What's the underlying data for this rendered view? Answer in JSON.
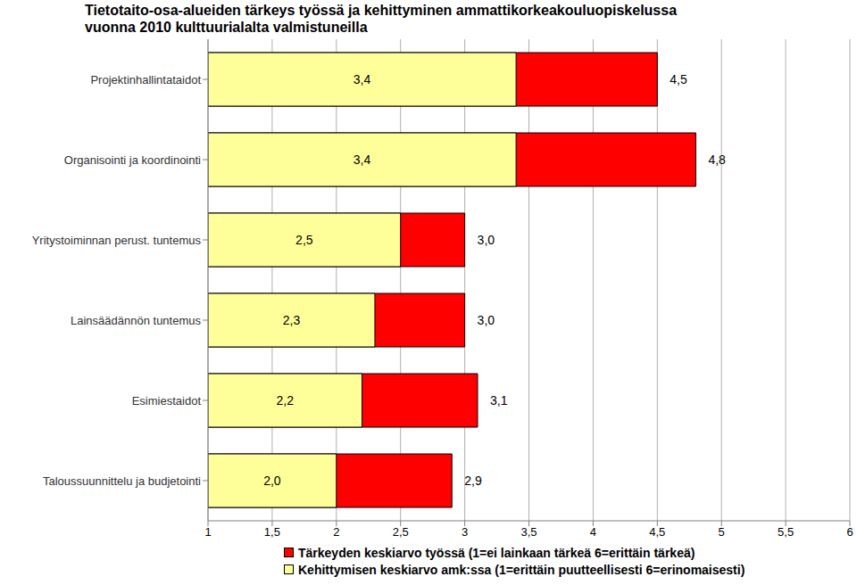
{
  "chart_data": {
    "type": "bar",
    "orientation": "horizontal",
    "title": "Tietotaito-osa-alueiden tärkeys työssä ja kehittyminen ammattikorkeakouluopiskelussa\nvuonna 2010 kulttuurialalta valmistuneilla",
    "categories": [
      "Projektinhallintataidot",
      "Organisointi ja koordinointi",
      "Yritystoiminnan perust. tuntemus",
      "Lainsäädännön tuntemus",
      "Esimiestaidot",
      "Taloussuunnittelu ja budjetointi"
    ],
    "series": [
      {
        "name": "Tärkeyden keskiarvo työssä (1=ei lainkaan tärkeä 6=erittäin tärkeä)",
        "color": "#ff0000",
        "values": [
          4.5,
          4.8,
          3.0,
          3.0,
          3.1,
          2.9
        ],
        "value_labels": [
          "4,5",
          "4,8",
          "3,0",
          "3,0",
          "3,1",
          "2,9"
        ]
      },
      {
        "name": "Kehittymisen keskiarvo amk:ssa (1=erittäin puutteellisesti 6=erinomaisesti)",
        "color": "#ffff99",
        "values": [
          3.4,
          3.4,
          2.5,
          2.3,
          2.2,
          2.0
        ],
        "value_labels": [
          "3,4",
          "3,4",
          "2,5",
          "2,3",
          "2,2",
          "2,0"
        ]
      }
    ],
    "xlim": [
      1,
      6
    ],
    "xticks": [
      1,
      {
        "value": 1.5,
        "label": "1,5"
      },
      2,
      {
        "value": 2.5,
        "label": "2,5"
      },
      3,
      {
        "value": 3.5,
        "label": "3,5"
      },
      4,
      {
        "value": 4.5,
        "label": "4,5"
      },
      5,
      {
        "value": 5.5,
        "label": "5,5"
      },
      6
    ],
    "grid": true,
    "legend": "bottom",
    "data_labels": true
  }
}
